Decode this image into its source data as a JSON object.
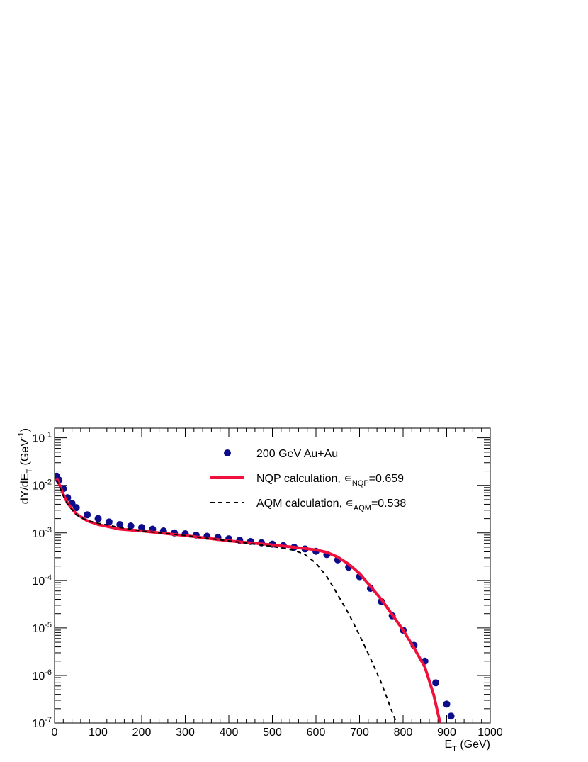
{
  "chart_data": {
    "type": "line",
    "x_label": "E_{T} (GeV)",
    "y_label": "dY/dE_{T} (GeV^{-1})",
    "log_y": true,
    "legend": "top",
    "xlim": [
      0,
      1000
    ],
    "xticks": [
      0,
      100,
      200,
      300,
      400,
      500,
      600,
      700,
      800,
      900,
      1000
    ],
    "ylim": [
      1e-07,
      0.16
    ],
    "yticks": [
      {
        "value": 1e-07,
        "label": "10^{-7}"
      },
      {
        "value": 1e-06,
        "label": "10^{-6}"
      },
      {
        "value": 1e-05,
        "label": "10^{-5}"
      },
      {
        "value": 0.0001,
        "label": "10^{-4}"
      },
      {
        "value": 0.001,
        "label": "10^{-3}"
      },
      {
        "value": 0.01,
        "label": "10^{-2}"
      },
      {
        "value": 0.1,
        "label": "10^{-1}"
      }
    ],
    "series": [
      {
        "name": "200 GeV Au+Au",
        "color": "#0d0d8c",
        "kind": "markers",
        "x": [
          5,
          10,
          20,
          30,
          40,
          50,
          75,
          100,
          125,
          150,
          175,
          200,
          225,
          250,
          275,
          300,
          325,
          350,
          375,
          400,
          425,
          450,
          475,
          500,
          525,
          550,
          575,
          600,
          625,
          650,
          675,
          700,
          725,
          750,
          775,
          800,
          825,
          850,
          875,
          900,
          910
        ],
        "values": [
          0.0156,
          0.013,
          0.0085,
          0.0055,
          0.0042,
          0.0034,
          0.0024,
          0.002,
          0.0017,
          0.0015,
          0.0014,
          0.0013,
          0.0012,
          0.0011,
          0.001,
          0.00096,
          0.0009,
          0.00085,
          0.0008,
          0.00075,
          0.0007,
          0.00066,
          0.00062,
          0.00058,
          0.00054,
          0.0005,
          0.00046,
          0.00041,
          0.00035,
          0.00027,
          0.00019,
          0.00012,
          6.8e-05,
          3.6e-05,
          1.8e-05,
          9e-06,
          4.3e-06,
          2e-06,
          7e-07,
          2.5e-07,
          1.4e-07
        ]
      },
      {
        "name": "NQP calculation, ∊_{NQP}=0.659",
        "color": "#f0103c",
        "kind": "solid",
        "x": [
          5,
          10,
          20,
          30,
          50,
          75,
          100,
          150,
          200,
          300,
          400,
          500,
          550,
          600,
          625,
          650,
          675,
          700,
          725,
          750,
          775,
          800,
          825,
          850,
          870,
          885
        ],
        "values": [
          0.014,
          0.011,
          0.0065,
          0.0042,
          0.0025,
          0.0018,
          0.0015,
          0.0012,
          0.0011,
          0.00088,
          0.00068,
          0.00056,
          0.0005,
          0.00044,
          0.00039,
          0.00031,
          0.00022,
          0.00014,
          7.5e-05,
          4e-05,
          1.9e-05,
          9e-06,
          3.8e-06,
          1.5e-06,
          4e-07,
          1e-07
        ]
      },
      {
        "name": "AQM calculation, ∊_{AQM}=0.538",
        "color": "#000000",
        "kind": "dashed",
        "x": [
          5,
          10,
          20,
          30,
          50,
          75,
          100,
          150,
          200,
          300,
          400,
          500,
          550,
          575,
          600,
          625,
          650,
          675,
          700,
          725,
          750,
          775,
          785
        ],
        "values": [
          0.013,
          0.01,
          0.006,
          0.004,
          0.0024,
          0.0018,
          0.0016,
          0.0013,
          0.0011,
          0.00088,
          0.00068,
          0.00052,
          0.00043,
          0.00035,
          0.00023,
          0.00012,
          5e-05,
          2e-05,
          7e-06,
          2.3e-06,
          7e-07,
          1.7e-07,
          1e-07
        ]
      }
    ]
  }
}
